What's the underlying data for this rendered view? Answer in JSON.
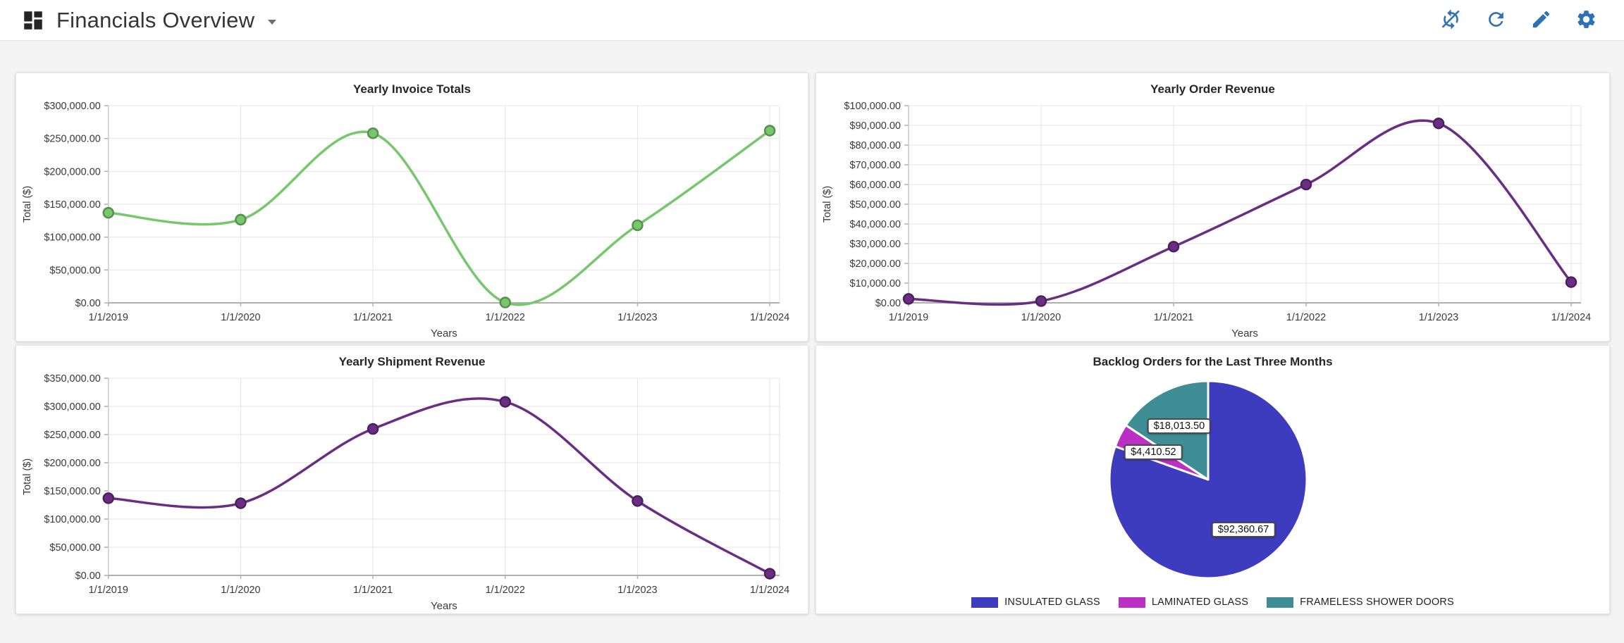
{
  "header": {
    "title": "Financials Overview",
    "toolbar_icons": [
      "auto-refresh-off",
      "refresh",
      "edit",
      "settings"
    ],
    "icon_color": "#2d72b5"
  },
  "colors": {
    "page_background": "#f4f4f4",
    "panel_background": "#ffffff",
    "grid_line": "#e4e4e4",
    "axis_line": "#b0b0b0",
    "tick_text": "#3a3a3a"
  },
  "chart_data": [
    {
      "type": "line",
      "title": "Yearly Invoice Totals",
      "xlabel": "Years",
      "ylabel": "Total ($)",
      "categories": [
        "1/1/2019",
        "1/1/2020",
        "1/1/2021",
        "1/1/2022",
        "1/1/2023",
        "1/1/2024"
      ],
      "values": [
        137000,
        126500,
        258000,
        500,
        118000,
        262000
      ],
      "ylim": [
        0,
        300000
      ],
      "ytick_step": 50000,
      "ytick_labels": [
        "$0.00",
        "$50,000.00",
        "$100,000.00",
        "$150,000.00",
        "$200,000.00",
        "$250,000.00",
        "$300,000.00"
      ],
      "value_prefix": "$",
      "line_color": "#77c76d",
      "grid": true,
      "legend": "none"
    },
    {
      "type": "line",
      "title": "Yearly Order Revenue",
      "xlabel": "Years",
      "ylabel": "Total ($)",
      "categories": [
        "1/1/2019",
        "1/1/2020",
        "1/1/2021",
        "1/1/2022",
        "1/1/2023",
        "1/1/2024"
      ],
      "values": [
        2000,
        900,
        28500,
        60000,
        91000,
        10500
      ],
      "ylim": [
        0,
        100000
      ],
      "ytick_step": 10000,
      "ytick_labels": [
        "$0.00",
        "$10,000.00",
        "$20,000.00",
        "$30,000.00",
        "$40,000.00",
        "$50,000.00",
        "$60,000.00",
        "$70,000.00",
        "$80,000.00",
        "$90,000.00",
        "$100,000.00"
      ],
      "value_prefix": "$",
      "line_color": "#6a2d84",
      "grid": true,
      "legend": "none"
    },
    {
      "type": "line",
      "title": "Yearly Shipment Revenue",
      "xlabel": "Years",
      "ylabel": "Total ($)",
      "categories": [
        "1/1/2019",
        "1/1/2020",
        "1/1/2021",
        "1/1/2022",
        "1/1/2023",
        "1/1/2024"
      ],
      "values": [
        137000,
        128000,
        260000,
        308000,
        132000,
        3000
      ],
      "ylim": [
        0,
        350000
      ],
      "ytick_step": 50000,
      "ytick_labels": [
        "$0.00",
        "$50,000.00",
        "$100,000.00",
        "$150,000.00",
        "$200,000.00",
        "$250,000.00",
        "$300,000.00",
        "$350,000.00"
      ],
      "value_prefix": "$",
      "line_color": "#6a2d84",
      "grid": true,
      "legend": "none"
    },
    {
      "type": "pie",
      "title": "Backlog Orders for the Last Three Months",
      "slices": [
        {
          "label": "INSULATED GLASS",
          "value": 92360.67,
          "display": "$92,360.67",
          "color": "#3e3cbe"
        },
        {
          "label": "LAMINATED GLASS",
          "value": 4410.52,
          "display": "$4,410.52",
          "color": "#bc2fc4"
        },
        {
          "label": "FRAMELESS SHOWER DOORS",
          "value": 18013.5,
          "display": "$18,013.50",
          "color": "#3f8e96"
        }
      ],
      "legend_position": "bottom"
    }
  ]
}
